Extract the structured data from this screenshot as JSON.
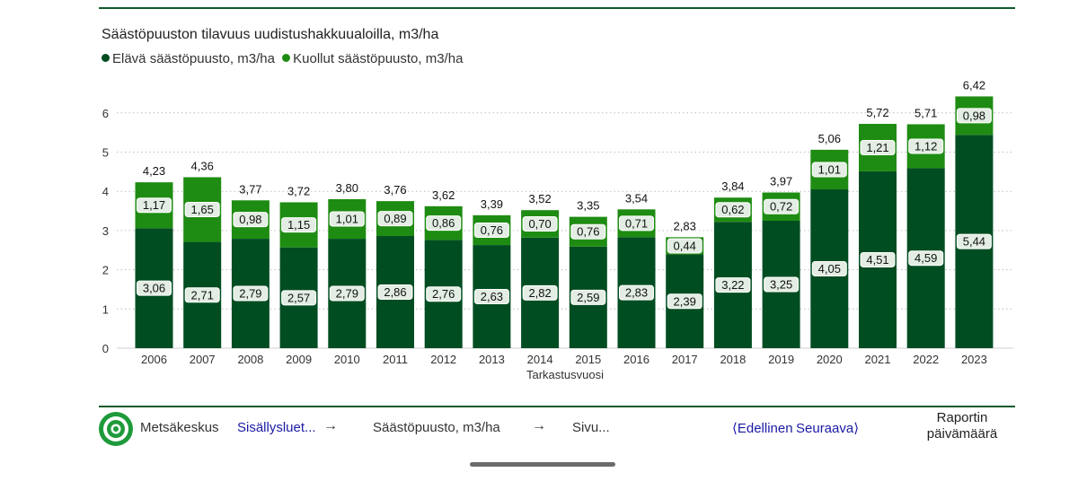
{
  "chart_data": {
    "type": "bar",
    "stacked": true,
    "title": "Säästöpuuston tilavuus uudistushakkuualoilla, m3/ha",
    "xlabel": "Tarkastusvuosi",
    "ylabel": "",
    "ylim": [
      0,
      6.5
    ],
    "yticks": [
      "0",
      "1",
      "2",
      "3",
      "4",
      "5",
      "6"
    ],
    "grid": true,
    "legend_position": "top-left",
    "categories": [
      "2006",
      "2007",
      "2008",
      "2009",
      "2010",
      "2011",
      "2012",
      "2013",
      "2014",
      "2015",
      "2016",
      "2017",
      "2018",
      "2019",
      "2020",
      "2021",
      "2022",
      "2023"
    ],
    "series": [
      {
        "name": "Elävä säästöpuusto, m3/ha",
        "color": "#004d21",
        "values": [
          3.06,
          2.71,
          2.79,
          2.57,
          2.79,
          2.86,
          2.76,
          2.63,
          2.82,
          2.59,
          2.83,
          2.39,
          3.22,
          3.25,
          4.05,
          4.51,
          4.59,
          5.44
        ],
        "labels": [
          "3,06",
          "2,71",
          "2,79",
          "2,57",
          "2,79",
          "2,86",
          "2,76",
          "2,63",
          "2,82",
          "2,59",
          "2,83",
          "2,39",
          "3,22",
          "3,25",
          "4,05",
          "4,51",
          "4,59",
          "5,44"
        ]
      },
      {
        "name": "Kuollut säästöpuusto, m3/ha",
        "color": "#1e8c12",
        "values": [
          1.17,
          1.65,
          0.98,
          1.15,
          1.01,
          0.89,
          0.86,
          0.76,
          0.7,
          0.76,
          0.71,
          0.44,
          0.62,
          0.72,
          1.01,
          1.21,
          1.12,
          0.98
        ],
        "labels": [
          "1,17",
          "1,65",
          "0,98",
          "1,15",
          "1,01",
          "0,89",
          "0,86",
          "0,76",
          "0,70",
          "0,76",
          "0,71",
          "0,44",
          "0,62",
          "0,72",
          "1,01",
          "1,21",
          "1,12",
          "0,98"
        ]
      }
    ],
    "totals": [
      "4,23",
      "4,36",
      "3,77",
      "3,72",
      "3,80",
      "3,76",
      "3,62",
      "3,39",
      "3,52",
      "3,35",
      "3,54",
      "2,83",
      "3,84",
      "3,97",
      "5,06",
      "5,72",
      "5,71",
      "6,42"
    ]
  },
  "footer": {
    "brand": "Metsäkeskus",
    "toc": "Sisällysluet...",
    "arrow": "→",
    "section": "Säästöpuusto, m3/ha",
    "page": "Sivu...",
    "prev": "Edellinen",
    "prev_glyph": "⟨",
    "next": "Seuraava",
    "next_glyph": "⟩",
    "report_date": "Raportin päivämäärä"
  }
}
